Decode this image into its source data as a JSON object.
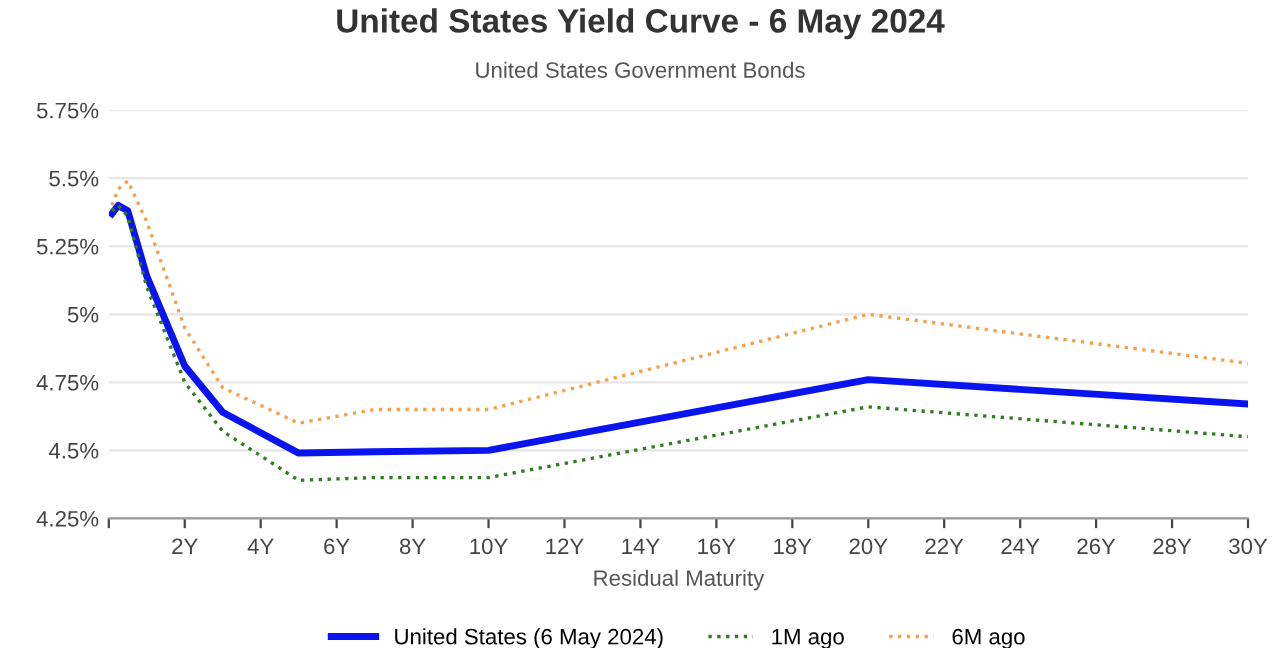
{
  "chart_data": {
    "type": "line",
    "title": "United States Yield Curve - 6 May 2024",
    "subtitle": "United States Government Bonds",
    "xlabel": "Residual Maturity",
    "x": [
      0.083,
      0.25,
      0.5,
      1,
      2,
      3,
      5,
      7,
      10,
      20,
      30
    ],
    "series": [
      {
        "name": "United States (6 May 2024)",
        "color": "#0a14f0",
        "line_style": "solid",
        "values": [
          5.37,
          5.4,
          5.38,
          5.14,
          4.81,
          4.64,
          4.49,
          4.495,
          4.5,
          4.76,
          4.67
        ]
      },
      {
        "name": "1M ago",
        "color": "#2e7d1e",
        "line_style": "dotted",
        "values": [
          5.38,
          5.4,
          5.36,
          5.1,
          4.75,
          4.57,
          4.39,
          4.4,
          4.4,
          4.66,
          4.55
        ]
      },
      {
        "name": "6M ago",
        "color": "#f5a04a",
        "line_style": "dotted",
        "values": [
          5.4,
          5.46,
          5.49,
          5.34,
          4.95,
          4.73,
          4.6,
          4.65,
          4.65,
          5.0,
          4.82
        ]
      }
    ],
    "xlim": [
      0,
      30
    ],
    "xticks": [
      {
        "value": 0,
        "label": null
      },
      {
        "value": 2,
        "label": "2Y"
      },
      {
        "value": 4,
        "label": "4Y"
      },
      {
        "value": 6,
        "label": "6Y"
      },
      {
        "value": 8,
        "label": "8Y"
      },
      {
        "value": 10,
        "label": "10Y"
      },
      {
        "value": 12,
        "label": "12Y"
      },
      {
        "value": 14,
        "label": "14Y"
      },
      {
        "value": 16,
        "label": "16Y"
      },
      {
        "value": 18,
        "label": "18Y"
      },
      {
        "value": 20,
        "label": "20Y"
      },
      {
        "value": 22,
        "label": "22Y"
      },
      {
        "value": 24,
        "label": "24Y"
      },
      {
        "value": 26,
        "label": "26Y"
      },
      {
        "value": 28,
        "label": "28Y"
      },
      {
        "value": 30,
        "label": "30Y"
      }
    ],
    "ylim": [
      4.25,
      5.75
    ],
    "yticks": [
      {
        "value": 4.25,
        "label": "4.25%"
      },
      {
        "value": 4.5,
        "label": "4.5%"
      },
      {
        "value": 4.75,
        "label": "4.75%"
      },
      {
        "value": 5,
        "label": "5%"
      },
      {
        "value": 5.25,
        "label": "5.25%"
      },
      {
        "value": 5.5,
        "label": "5.5%"
      },
      {
        "value": 5.75,
        "label": "5.75%"
      }
    ],
    "grid": "y",
    "legend": "bottom"
  }
}
